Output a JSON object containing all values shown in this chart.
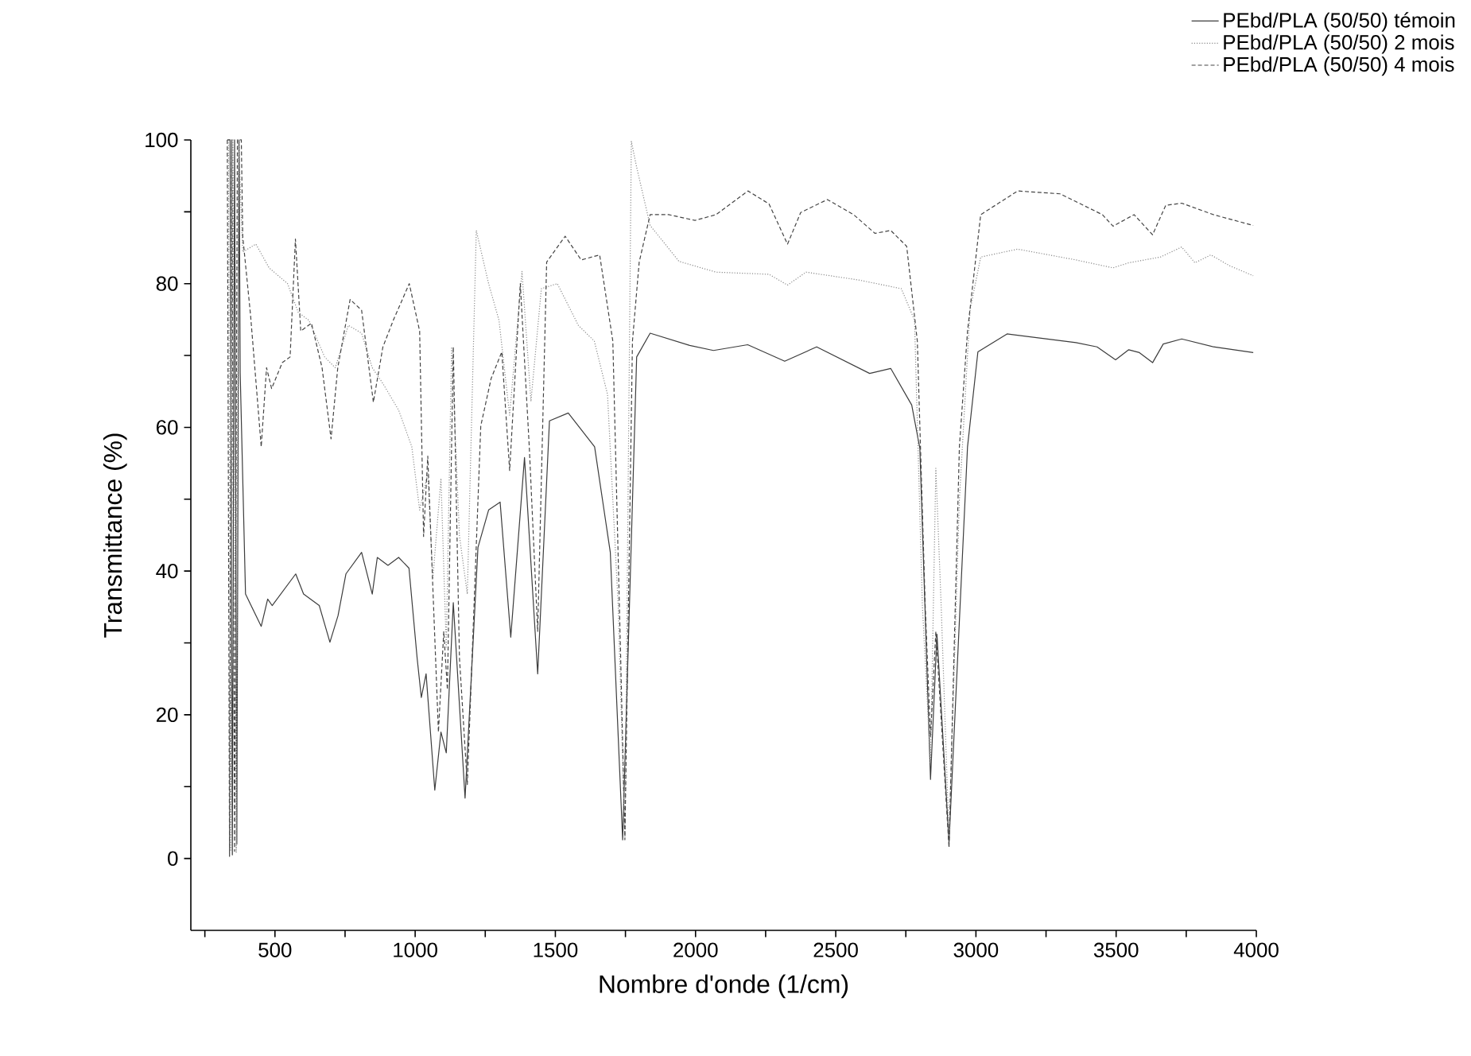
{
  "chart_data": {
    "type": "line",
    "xlabel": "Nombre d'onde (1/cm)",
    "ylabel": "Transmittance (%)",
    "xlim": [
      200,
      4000
    ],
    "ylim": [
      -10,
      100
    ],
    "xticks": [
      {
        "value": 250,
        "label": null
      },
      500,
      {
        "value": 750,
        "label": null
      },
      1000,
      {
        "value": 1250,
        "label": null
      },
      1500,
      {
        "value": 1750,
        "label": null
      },
      2000,
      {
        "value": 2250,
        "label": null
      },
      2500,
      {
        "value": 2750,
        "label": null
      },
      3000,
      {
        "value": 3250,
        "label": null
      },
      3500,
      {
        "value": 3750,
        "label": null
      },
      4000
    ],
    "yticks": [
      0,
      {
        "value": 10,
        "label": null
      },
      20,
      {
        "value": 30,
        "label": null
      },
      40,
      {
        "value": 50,
        "label": null
      },
      60,
      {
        "value": 70,
        "label": null
      },
      80,
      {
        "value": 90,
        "label": null
      },
      100
    ],
    "legend": "top right",
    "grid": false,
    "marker": "none",
    "series": [
      {
        "name": "PEbd/PLA (50/50) témoin",
        "color": "#3c3c3c",
        "line_style": "solid",
        "x": [
          330,
          340,
          348,
          356,
          364,
          372,
          376,
          395,
          451,
          474,
          490,
          574,
          602,
          658,
          696,
          725,
          753,
          809,
          847,
          865,
          903,
          941,
          978,
          1007,
          1022,
          1039,
          1070,
          1092,
          1111,
          1136,
          1178,
          1224,
          1262,
          1303,
          1341,
          1390,
          1437,
          1479,
          1546,
          1640,
          1696,
          1740,
          1790,
          1838,
          1979,
          2064,
          2186,
          2318,
          2432,
          2621,
          2696,
          2771,
          2800,
          2838,
          2861,
          2904,
          2970,
          3007,
          3111,
          3357,
          3432,
          3498,
          3545,
          3583,
          3630,
          3668,
          3734,
          3847,
          3989
        ],
        "values": [
          100,
          100,
          0.5,
          100,
          2,
          100,
          67.6,
          36.8,
          32.3,
          36.1,
          35.2,
          39.6,
          36.8,
          35.2,
          30.1,
          33.8,
          39.6,
          42.6,
          36.8,
          41.9,
          40.8,
          41.9,
          40.4,
          27.9,
          22.4,
          25.7,
          9.5,
          17.6,
          14.7,
          35.6,
          8.4,
          43.3,
          48.5,
          49.6,
          30.8,
          55.8,
          25.7,
          60.9,
          62,
          57.3,
          42.6,
          2.6,
          69.8,
          73.1,
          71.4,
          70.7,
          71.5,
          69.2,
          71.2,
          67.5,
          68.2,
          63.1,
          57.1,
          11,
          31.2,
          2.2,
          57.3,
          70.5,
          73,
          71.8,
          71.2,
          69.4,
          70.8,
          70.4,
          69,
          71.6,
          72.3,
          71.2,
          70.4
        ]
      },
      {
        "name": "PEbd/PLA (50/50) 2 mois",
        "color": "#8a8a8a",
        "line_style": "dotted",
        "x": [
          334,
          342,
          350,
          362,
          370,
          385,
          432,
          479,
          545,
          583,
          621,
          677,
          715,
          762,
          809,
          847,
          885,
          941,
          988,
          1016,
          1045,
          1063,
          1092,
          1111,
          1130,
          1158,
          1186,
          1218,
          1262,
          1299,
          1337,
          1381,
          1413,
          1450,
          1507,
          1582,
          1639,
          1686,
          1724,
          1748,
          1771,
          1790,
          1838,
          1941,
          2073,
          2262,
          2328,
          2394,
          2583,
          2734,
          2781,
          2809,
          2838,
          2857,
          2876,
          2904,
          2941,
          2979,
          3017,
          3149,
          3357,
          3489,
          3545,
          3658,
          3734,
          3781,
          3838,
          3904,
          3989
        ],
        "values": [
          100,
          1,
          100,
          0.8,
          100,
          84.4,
          85.5,
          82.2,
          80,
          76,
          74.9,
          69.8,
          68.3,
          74.2,
          73.1,
          68.3,
          66.1,
          62.4,
          57.3,
          48.5,
          53.6,
          38.9,
          52.9,
          29.4,
          71.2,
          44.9,
          36.8,
          87.4,
          80,
          74.9,
          61.7,
          81.7,
          63.6,
          79.3,
          80,
          74.2,
          72,
          64.6,
          35.2,
          2.9,
          99.8,
          96.2,
          88.1,
          83.1,
          81.6,
          81.3,
          79.8,
          81.6,
          80.5,
          79.3,
          74.9,
          35.2,
          13.2,
          54.3,
          35.2,
          2.9,
          49.9,
          76.3,
          83.7,
          84.8,
          83.3,
          82.2,
          82.9,
          83.7,
          85.1,
          82.9,
          84,
          82.5,
          81.1
        ]
      },
      {
        "name": "PEbd/PLA (50/50) 4 mois",
        "color": "#444444",
        "line_style": "dashed",
        "x": [
          330,
          338,
          346,
          356,
          366,
          380,
          385,
          413,
          451,
          470,
          488,
          526,
          554,
          573,
          592,
          630,
          668,
          700,
          724,
          768,
          809,
          851,
          885,
          922,
          979,
          1016,
          1030,
          1045,
          1083,
          1102,
          1115,
          1136,
          1158,
          1186,
          1234,
          1271,
          1309,
          1337,
          1375,
          1407,
          1437,
          1469,
          1535,
          1592,
          1658,
          1705,
          1733,
          1748,
          1775,
          1799,
          1838,
          1904,
          1998,
          2073,
          2187,
          2262,
          2328,
          2375,
          2470,
          2564,
          2640,
          2696,
          2753,
          2791,
          2819,
          2838,
          2857,
          2904,
          2941,
          2970,
          3017,
          3149,
          3300,
          3451,
          3489,
          3564,
          3630,
          3677,
          3734,
          3847,
          3989
        ],
        "values": [
          100,
          0.3,
          100,
          1,
          100,
          100,
          86.6,
          75.6,
          57.3,
          68.3,
          65.4,
          69,
          69.8,
          86.2,
          73.4,
          74.5,
          68.3,
          58.4,
          68.3,
          77.8,
          76.3,
          63.5,
          71.2,
          74.9,
          80,
          73.4,
          44.8,
          56,
          17.6,
          31.6,
          23.5,
          71.2,
          27.9,
          10.3,
          60.2,
          66.8,
          70.5,
          54,
          80,
          57.3,
          31.6,
          83,
          86.6,
          83.3,
          84,
          72,
          27.9,
          2.6,
          72,
          83,
          89.6,
          89.6,
          88.8,
          89.6,
          92.9,
          91.1,
          85.5,
          89.9,
          91.7,
          89.6,
          87,
          87.4,
          85.2,
          72,
          35.2,
          16.9,
          31.6,
          1.5,
          57.3,
          73.4,
          89.6,
          92.9,
          92.5,
          89.6,
          88,
          89.6,
          86.8,
          90.9,
          91.2,
          89.6,
          88.1
        ]
      }
    ]
  }
}
